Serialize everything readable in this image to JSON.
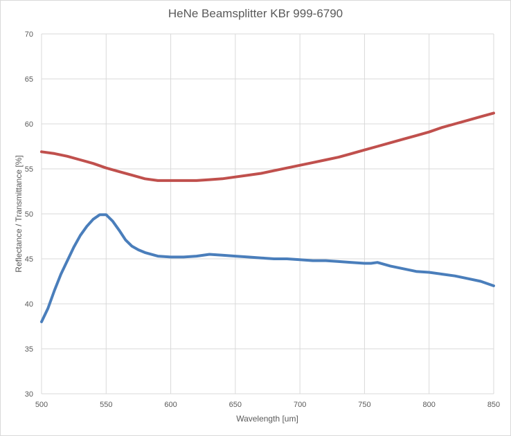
{
  "chart_data": {
    "type": "line",
    "title": "HeNe Beamsplitter KBr 999-6790",
    "xlabel": "Wavelength [um]",
    "ylabel": "Reflectance / Transmittance [%]",
    "xlim": [
      500,
      850
    ],
    "ylim": [
      30,
      70
    ],
    "x_ticks": [
      500,
      550,
      600,
      650,
      700,
      750,
      800,
      850
    ],
    "y_ticks": [
      30,
      35,
      40,
      45,
      50,
      55,
      60,
      65,
      70
    ],
    "grid": true,
    "legend": "none",
    "series": [
      {
        "color": "#c0504d",
        "x": [
          500,
          510,
          520,
          530,
          540,
          550,
          560,
          570,
          580,
          590,
          600,
          610,
          620,
          630,
          640,
          650,
          660,
          670,
          680,
          690,
          700,
          710,
          720,
          730,
          740,
          750,
          760,
          770,
          780,
          790,
          800,
          810,
          820,
          830,
          840,
          850
        ],
        "y": [
          56.9,
          56.7,
          56.4,
          56.0,
          55.6,
          55.1,
          54.7,
          54.3,
          53.9,
          53.7,
          53.7,
          53.7,
          53.7,
          53.8,
          53.9,
          54.1,
          54.3,
          54.5,
          54.8,
          55.1,
          55.4,
          55.7,
          56.0,
          56.3,
          56.7,
          57.1,
          57.5,
          57.9,
          58.3,
          58.7,
          59.1,
          59.6,
          60.0,
          60.4,
          60.8,
          61.2
        ]
      },
      {
        "color": "#4a7ebb",
        "x": [
          500,
          505,
          510,
          515,
          520,
          525,
          530,
          535,
          540,
          545,
          550,
          555,
          560,
          565,
          570,
          575,
          580,
          590,
          600,
          610,
          620,
          630,
          640,
          650,
          660,
          670,
          680,
          690,
          700,
          710,
          720,
          730,
          740,
          750,
          755,
          760,
          770,
          780,
          790,
          800,
          810,
          820,
          830,
          840,
          850
        ],
        "y": [
          38.0,
          39.5,
          41.5,
          43.3,
          44.8,
          46.3,
          47.6,
          48.6,
          49.4,
          49.9,
          49.9,
          49.2,
          48.2,
          47.1,
          46.4,
          46.0,
          45.7,
          45.3,
          45.2,
          45.2,
          45.3,
          45.5,
          45.4,
          45.3,
          45.2,
          45.1,
          45.0,
          45.0,
          44.9,
          44.8,
          44.8,
          44.7,
          44.6,
          44.5,
          44.5,
          44.6,
          44.2,
          43.9,
          43.6,
          43.5,
          43.3,
          43.1,
          42.8,
          42.5,
          42.0
        ]
      }
    ]
  }
}
